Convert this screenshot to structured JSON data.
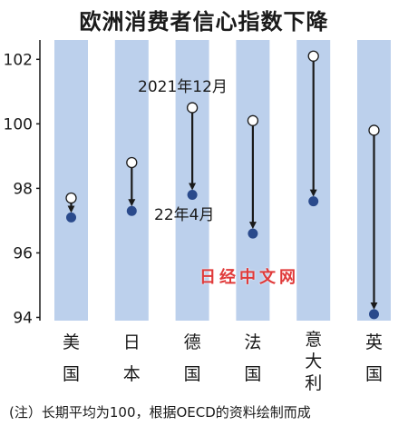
{
  "title": "欧洲消费者信心指数下降",
  "note": "(注）长期平均为100，根据OECD的资料绘制而成",
  "watermark": "日经中文网",
  "colors": {
    "band": "#bcd0ec",
    "marker": "#2a4a8c",
    "arrow": "#1a1a1a"
  },
  "chart_data": {
    "type": "dumbbell",
    "categories": [
      "美国",
      "日本",
      "德国",
      "法国",
      "意大利",
      "英国"
    ],
    "series": [
      {
        "name": "2021年12月",
        "values": [
          97.7,
          98.8,
          100.5,
          100.1,
          102.1,
          99.8
        ]
      },
      {
        "name": "22年4月",
        "values": [
          97.1,
          97.3,
          97.8,
          96.6,
          97.6,
          94.1
        ]
      }
    ],
    "yticks": [
      94,
      96,
      98,
      100,
      102
    ],
    "ylim": [
      93.9,
      102.6
    ],
    "grid": false,
    "legend": "annotations"
  }
}
